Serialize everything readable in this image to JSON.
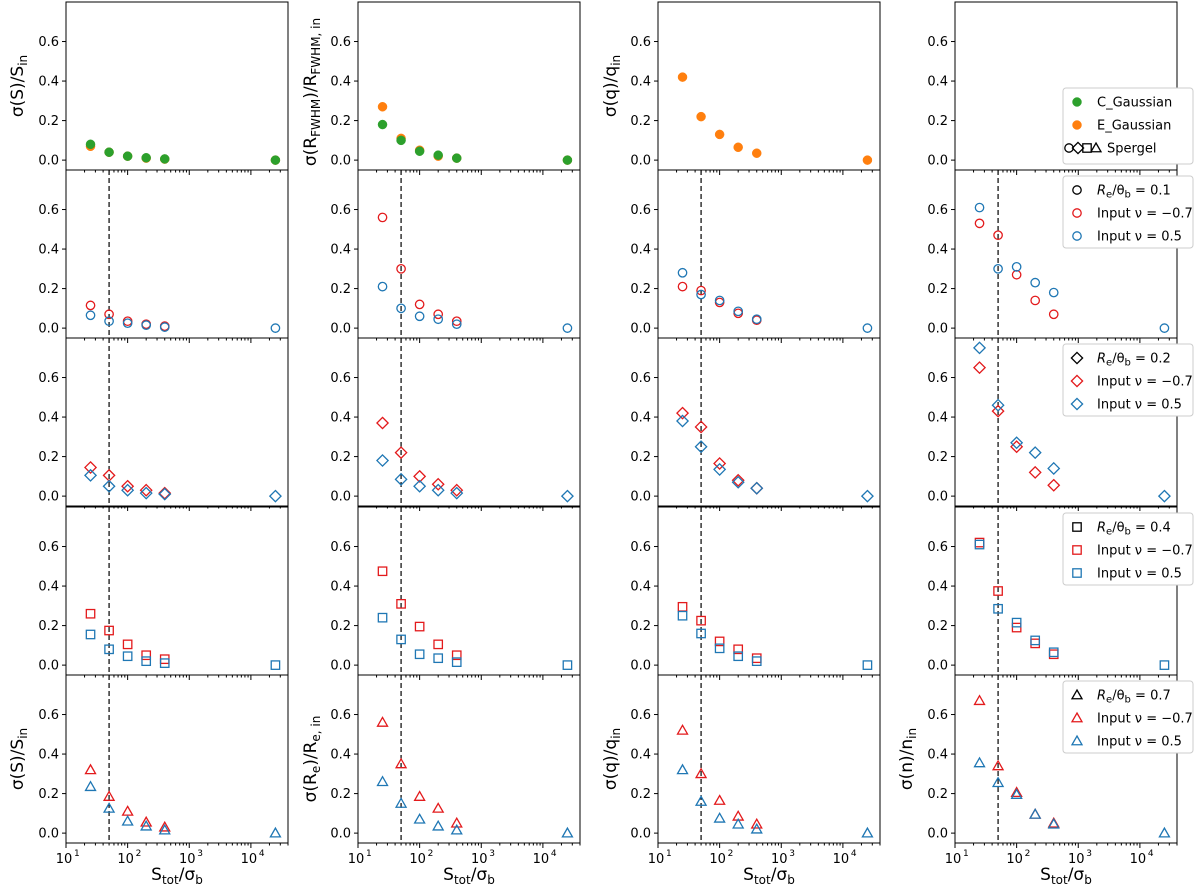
{
  "figure": {
    "x_axis": {
      "label_main": "S",
      "label_main_sub": "tot",
      "label_over": "/σ",
      "label_over_sub": "b",
      "scale": "log",
      "xlim": [
        10,
        40000
      ],
      "tick_values": [
        10,
        100,
        1000,
        10000
      ],
      "tick_labels": [
        "10",
        "10",
        "10",
        "10"
      ],
      "tick_label_exps": [
        "1",
        "2",
        "3",
        "4"
      ]
    },
    "y_axis": {
      "ylim": [
        -0.05,
        0.8
      ],
      "tick_values": [
        0.0,
        0.2,
        0.4,
        0.6
      ],
      "tick_labels": [
        "0.0",
        "0.2",
        "0.4",
        "0.6"
      ]
    },
    "vline_x": 50,
    "colors": {
      "c_gaussian": "#2ca02c",
      "e_gaussian": "#ff7f0e",
      "nu_neg": "#e31a1c",
      "nu_pos": "#1f77b4",
      "black": "#000000"
    },
    "column_labels": [
      {
        "top": "σ(S)/S_in",
        "bottom": "σ(S)/S_in"
      },
      {
        "top": "σ(R_FWHM)/R_FWHM,in",
        "bottom": "σ(R_e)/R_e,in"
      },
      {
        "top": "σ(q)/q_in",
        "bottom": "σ(q)/q_in"
      },
      {
        "top": "",
        "bottom": "σ(n)/n_in"
      }
    ],
    "ylabel_parts": {
      "c0_top": [
        "σ(S)/S",
        "in"
      ],
      "c1_top": [
        "σ(R",
        "FWHM",
        ")/R",
        "FWHM, in"
      ],
      "c2_top": [
        "σ(q)/q",
        "in"
      ],
      "c0_bot": [
        "σ(S)/S",
        "in"
      ],
      "c1_bot": [
        "σ(R",
        "e",
        ")/R",
        "e, in"
      ],
      "c2_bot": [
        "σ(q)/q",
        "in"
      ],
      "c3_bot": [
        "σ(n)/n",
        "in"
      ]
    },
    "legends": [
      {
        "entries": [
          {
            "marker": "filled-circle",
            "color": "#2ca02c",
            "label": "C_Gaussian"
          },
          {
            "marker": "filled-circle",
            "color": "#ff7f0e",
            "label": "E_Gaussian"
          },
          {
            "marker": "spergel-symbols",
            "color": "#000000",
            "label": "Spergel"
          }
        ]
      },
      {
        "marker": "circle",
        "entries": [
          {
            "color": "#000000",
            "label": "R",
            "sub": "e",
            "rest": "/θ",
            "sub2": "b",
            "tail": " = 0.1"
          },
          {
            "color": "#e31a1c",
            "label": "Input ν = −0.7"
          },
          {
            "color": "#1f77b4",
            "label": "Input ν = 0.5"
          }
        ]
      },
      {
        "marker": "diamond",
        "entries": [
          {
            "color": "#000000",
            "label": "R",
            "sub": "e",
            "rest": "/θ",
            "sub2": "b",
            "tail": " = 0.2"
          },
          {
            "color": "#e31a1c",
            "label": "Input ν = −0.7"
          },
          {
            "color": "#1f77b4",
            "label": "Input ν = 0.5"
          }
        ]
      },
      {
        "marker": "square",
        "entries": [
          {
            "color": "#000000",
            "label": "R",
            "sub": "e",
            "rest": "/θ",
            "sub2": "b",
            "tail": " = 0.4"
          },
          {
            "color": "#e31a1c",
            "label": "Input ν = −0.7"
          },
          {
            "color": "#1f77b4",
            "label": "Input ν = 0.5"
          }
        ]
      },
      {
        "marker": "triangle",
        "entries": [
          {
            "color": "#000000",
            "label": "R",
            "sub": "e",
            "rest": "/θ",
            "sub2": "b",
            "tail": " = 0.7"
          },
          {
            "color": "#e31a1c",
            "label": "Input ν = −0.7"
          },
          {
            "color": "#1f77b4",
            "label": "Input ν = 0.5"
          }
        ]
      }
    ]
  },
  "chart_data": {
    "type": "scatter",
    "title": "",
    "xlabel": "S_tot/σ_b",
    "xscale": "log",
    "xlim": [
      10,
      40000
    ],
    "ylim": [
      -0.05,
      0.8
    ],
    "x": [
      25,
      50,
      100,
      200,
      400,
      25000
    ],
    "panels": [
      {
        "row": 0,
        "col": 0,
        "ylabel": "σ(S)/S_in",
        "series": [
          {
            "name": "E_Gaussian",
            "marker": "filled-circle",
            "color": "#ff7f0e",
            "values": [
              0.07,
              0.04,
              0.02,
              0.01,
              0.005,
              0.0
            ]
          },
          {
            "name": "C_Gaussian",
            "marker": "filled-circle",
            "color": "#2ca02c",
            "values": [
              0.08,
              0.04,
              0.02,
              0.012,
              0.006,
              0.0
            ]
          }
        ]
      },
      {
        "row": 0,
        "col": 1,
        "ylabel": "σ(R_FWHM)/R_FWHM,in",
        "series": [
          {
            "name": "E_Gaussian",
            "marker": "filled-circle",
            "color": "#ff7f0e",
            "values": [
              0.27,
              0.11,
              0.05,
              0.02,
              0.01,
              0.0
            ]
          },
          {
            "name": "C_Gaussian",
            "marker": "filled-circle",
            "color": "#2ca02c",
            "values": [
              0.18,
              0.1,
              0.045,
              0.025,
              0.01,
              0.0
            ]
          }
        ]
      },
      {
        "row": 0,
        "col": 2,
        "ylabel": "σ(q)/q_in",
        "series": [
          {
            "name": "E_Gaussian",
            "marker": "filled-circle",
            "color": "#ff7f0e",
            "values": [
              0.42,
              0.22,
              0.13,
              0.065,
              0.035,
              0.0
            ]
          }
        ]
      },
      {
        "row": 0,
        "col": 3,
        "ylabel": "",
        "series": []
      },
      {
        "row": 1,
        "col": 0,
        "ylabel": "σ(S)/S_in",
        "series": [
          {
            "name": "R_e/θ_b=0.1 ν=-0.7",
            "marker": "circle",
            "color": "#e31a1c",
            "values": [
              0.115,
              0.07,
              0.035,
              0.02,
              0.01,
              null
            ]
          },
          {
            "name": "R_e/θ_b=0.1 ν=0.5",
            "marker": "circle",
            "color": "#1f77b4",
            "values": [
              0.065,
              0.035,
              0.025,
              0.015,
              0.005,
              0.0
            ]
          }
        ]
      },
      {
        "row": 1,
        "col": 1,
        "ylabel": "σ(R_FWHM)/R_FWHM,in",
        "series": [
          {
            "name": "R_e/θ_b=0.1 ν=-0.7",
            "marker": "circle",
            "color": "#e31a1c",
            "values": [
              0.56,
              0.3,
              0.12,
              0.07,
              0.035,
              null
            ]
          },
          {
            "name": "R_e/θ_b=0.1 ν=0.5",
            "marker": "circle",
            "color": "#1f77b4",
            "values": [
              0.21,
              0.1,
              0.06,
              0.045,
              0.02,
              0.0
            ]
          }
        ]
      },
      {
        "row": 1,
        "col": 2,
        "ylabel": "σ(q)/q_in",
        "series": [
          {
            "name": "R_e/θ_b=0.1 ν=-0.7",
            "marker": "circle",
            "color": "#e31a1c",
            "values": [
              0.21,
              0.19,
              0.13,
              0.075,
              0.04,
              null
            ]
          },
          {
            "name": "R_e/θ_b=0.1 ν=0.5",
            "marker": "circle",
            "color": "#1f77b4",
            "values": [
              0.28,
              0.17,
              0.14,
              0.085,
              0.045,
              0.0
            ]
          }
        ]
      },
      {
        "row": 1,
        "col": 3,
        "ylabel": "σ(n)/n_in",
        "series": [
          {
            "name": "R_e/θ_b=0.1 ν=-0.7",
            "marker": "circle",
            "color": "#e31a1c",
            "values": [
              0.53,
              0.47,
              0.27,
              0.14,
              0.07,
              null
            ]
          },
          {
            "name": "R_e/θ_b=0.1 ν=0.5",
            "marker": "circle",
            "color": "#1f77b4",
            "values": [
              0.61,
              0.3,
              0.31,
              0.23,
              0.18,
              0.0
            ]
          }
        ]
      },
      {
        "row": 2,
        "col": 0,
        "ylabel": "σ(S)/S_in",
        "series": [
          {
            "name": "R_e/θ_b=0.2 ν=-0.7",
            "marker": "diamond",
            "color": "#e31a1c",
            "values": [
              0.145,
              0.105,
              0.05,
              0.03,
              0.015,
              null
            ]
          },
          {
            "name": "R_e/θ_b=0.2 ν=0.5",
            "marker": "diamond",
            "color": "#1f77b4",
            "values": [
              0.105,
              0.05,
              0.03,
              0.015,
              0.01,
              0.0
            ]
          }
        ]
      },
      {
        "row": 2,
        "col": 1,
        "ylabel": "σ(R_FWHM)/R_FWHM,in",
        "series": [
          {
            "name": "R_e/θ_b=0.2 ν=-0.7",
            "marker": "diamond",
            "color": "#e31a1c",
            "values": [
              0.37,
              0.22,
              0.1,
              0.06,
              0.03,
              null
            ]
          },
          {
            "name": "R_e/θ_b=0.2 ν=0.5",
            "marker": "diamond",
            "color": "#1f77b4",
            "values": [
              0.18,
              0.085,
              0.05,
              0.03,
              0.015,
              0.0
            ]
          }
        ]
      },
      {
        "row": 2,
        "col": 2,
        "ylabel": "σ(q)/q_in",
        "series": [
          {
            "name": "R_e/θ_b=0.2 ν=-0.7",
            "marker": "diamond",
            "color": "#e31a1c",
            "values": [
              0.42,
              0.35,
              0.165,
              0.08,
              0.04,
              null
            ]
          },
          {
            "name": "R_e/θ_b=0.2 ν=0.5",
            "marker": "diamond",
            "color": "#1f77b4",
            "values": [
              0.38,
              0.25,
              0.135,
              0.07,
              0.04,
              0.0
            ]
          }
        ]
      },
      {
        "row": 2,
        "col": 3,
        "ylabel": "σ(n)/n_in",
        "series": [
          {
            "name": "R_e/θ_b=0.2 ν=-0.7",
            "marker": "diamond",
            "color": "#e31a1c",
            "values": [
              0.65,
              0.43,
              0.25,
              0.12,
              0.055,
              null
            ]
          },
          {
            "name": "R_e/θ_b=0.2 ν=0.5",
            "marker": "diamond",
            "color": "#1f77b4",
            "values": [
              0.75,
              0.46,
              0.27,
              0.22,
              0.14,
              0.0
            ]
          }
        ]
      },
      {
        "row": 3,
        "col": 0,
        "ylabel": "σ(S)/S_in",
        "series": [
          {
            "name": "R_e/θ_b=0.4 ν=-0.7",
            "marker": "square",
            "color": "#e31a1c",
            "values": [
              0.26,
              0.175,
              0.105,
              0.05,
              0.03,
              null
            ]
          },
          {
            "name": "R_e/θ_b=0.4 ν=0.5",
            "marker": "square",
            "color": "#1f77b4",
            "values": [
              0.155,
              0.08,
              0.045,
              0.02,
              0.01,
              0.0
            ]
          }
        ]
      },
      {
        "row": 3,
        "col": 1,
        "ylabel": "σ(R_FWHM)/R_FWHM,in",
        "series": [
          {
            "name": "R_e/θ_b=0.4 ν=-0.7",
            "marker": "square",
            "color": "#e31a1c",
            "values": [
              0.475,
              0.31,
              0.195,
              0.105,
              0.05,
              null
            ]
          },
          {
            "name": "R_e/θ_b=0.4 ν=0.5",
            "marker": "square",
            "color": "#1f77b4",
            "values": [
              0.24,
              0.13,
              0.055,
              0.035,
              0.015,
              0.0
            ]
          }
        ]
      },
      {
        "row": 3,
        "col": 2,
        "ylabel": "σ(q)/q_in",
        "series": [
          {
            "name": "R_e/θ_b=0.4 ν=-0.7",
            "marker": "square",
            "color": "#e31a1c",
            "values": [
              0.295,
              0.225,
              0.12,
              0.08,
              0.035,
              null
            ]
          },
          {
            "name": "R_e/θ_b=0.4 ν=0.5",
            "marker": "square",
            "color": "#1f77b4",
            "values": [
              0.25,
              0.16,
              0.085,
              0.045,
              0.02,
              0.0
            ]
          }
        ]
      },
      {
        "row": 3,
        "col": 3,
        "ylabel": "σ(n)/n_in",
        "series": [
          {
            "name": "R_e/θ_b=0.4 ν=-0.7",
            "marker": "square",
            "color": "#e31a1c",
            "values": [
              0.62,
              0.375,
              0.19,
              0.11,
              0.055,
              null
            ]
          },
          {
            "name": "R_e/θ_b=0.4 ν=0.5",
            "marker": "square",
            "color": "#1f77b4",
            "values": [
              0.61,
              0.285,
              0.215,
              0.125,
              0.065,
              0.0
            ]
          }
        ]
      },
      {
        "row": 4,
        "col": 0,
        "ylabel": "σ(S)/S_in",
        "series": [
          {
            "name": "R_e/θ_b=0.7 ν=-0.7",
            "marker": "triangle",
            "color": "#e31a1c",
            "values": [
              0.32,
              0.185,
              0.11,
              0.055,
              0.03,
              null
            ]
          },
          {
            "name": "R_e/θ_b=0.7 ν=0.5",
            "marker": "triangle",
            "color": "#1f77b4",
            "values": [
              0.235,
              0.125,
              0.06,
              0.035,
              0.015,
              0.0
            ]
          }
        ]
      },
      {
        "row": 4,
        "col": 1,
        "ylabel": "σ(R_e)/R_e,in",
        "series": [
          {
            "name": "R_e/θ_b=0.7 ν=-0.7",
            "marker": "triangle",
            "color": "#e31a1c",
            "values": [
              0.56,
              0.35,
              0.185,
              0.125,
              0.05,
              null
            ]
          },
          {
            "name": "R_e/θ_b=0.7 ν=0.5",
            "marker": "triangle",
            "color": "#1f77b4",
            "values": [
              0.26,
              0.15,
              0.07,
              0.035,
              0.015,
              0.0
            ]
          }
        ]
      },
      {
        "row": 4,
        "col": 2,
        "ylabel": "σ(q)/q_in",
        "series": [
          {
            "name": "R_e/θ_b=0.7 ν=-0.7",
            "marker": "triangle",
            "color": "#e31a1c",
            "values": [
              0.52,
              0.3,
              0.165,
              0.085,
              0.045,
              null
            ]
          },
          {
            "name": "R_e/θ_b=0.7 ν=0.5",
            "marker": "triangle",
            "color": "#1f77b4",
            "values": [
              0.32,
              0.16,
              0.075,
              0.045,
              0.02,
              0.0
            ]
          }
        ]
      },
      {
        "row": 4,
        "col": 3,
        "ylabel": "σ(n)/n_in",
        "series": [
          {
            "name": "R_e/θ_b=0.7 ν=-0.7",
            "marker": "triangle",
            "color": "#e31a1c",
            "values": [
              0.67,
              0.34,
              0.205,
              0.095,
              0.05,
              null
            ]
          },
          {
            "name": "R_e/θ_b=0.7 ν=0.5",
            "marker": "triangle",
            "color": "#1f77b4",
            "values": [
              0.355,
              0.255,
              0.195,
              0.095,
              0.045,
              0.0
            ]
          }
        ]
      }
    ]
  }
}
